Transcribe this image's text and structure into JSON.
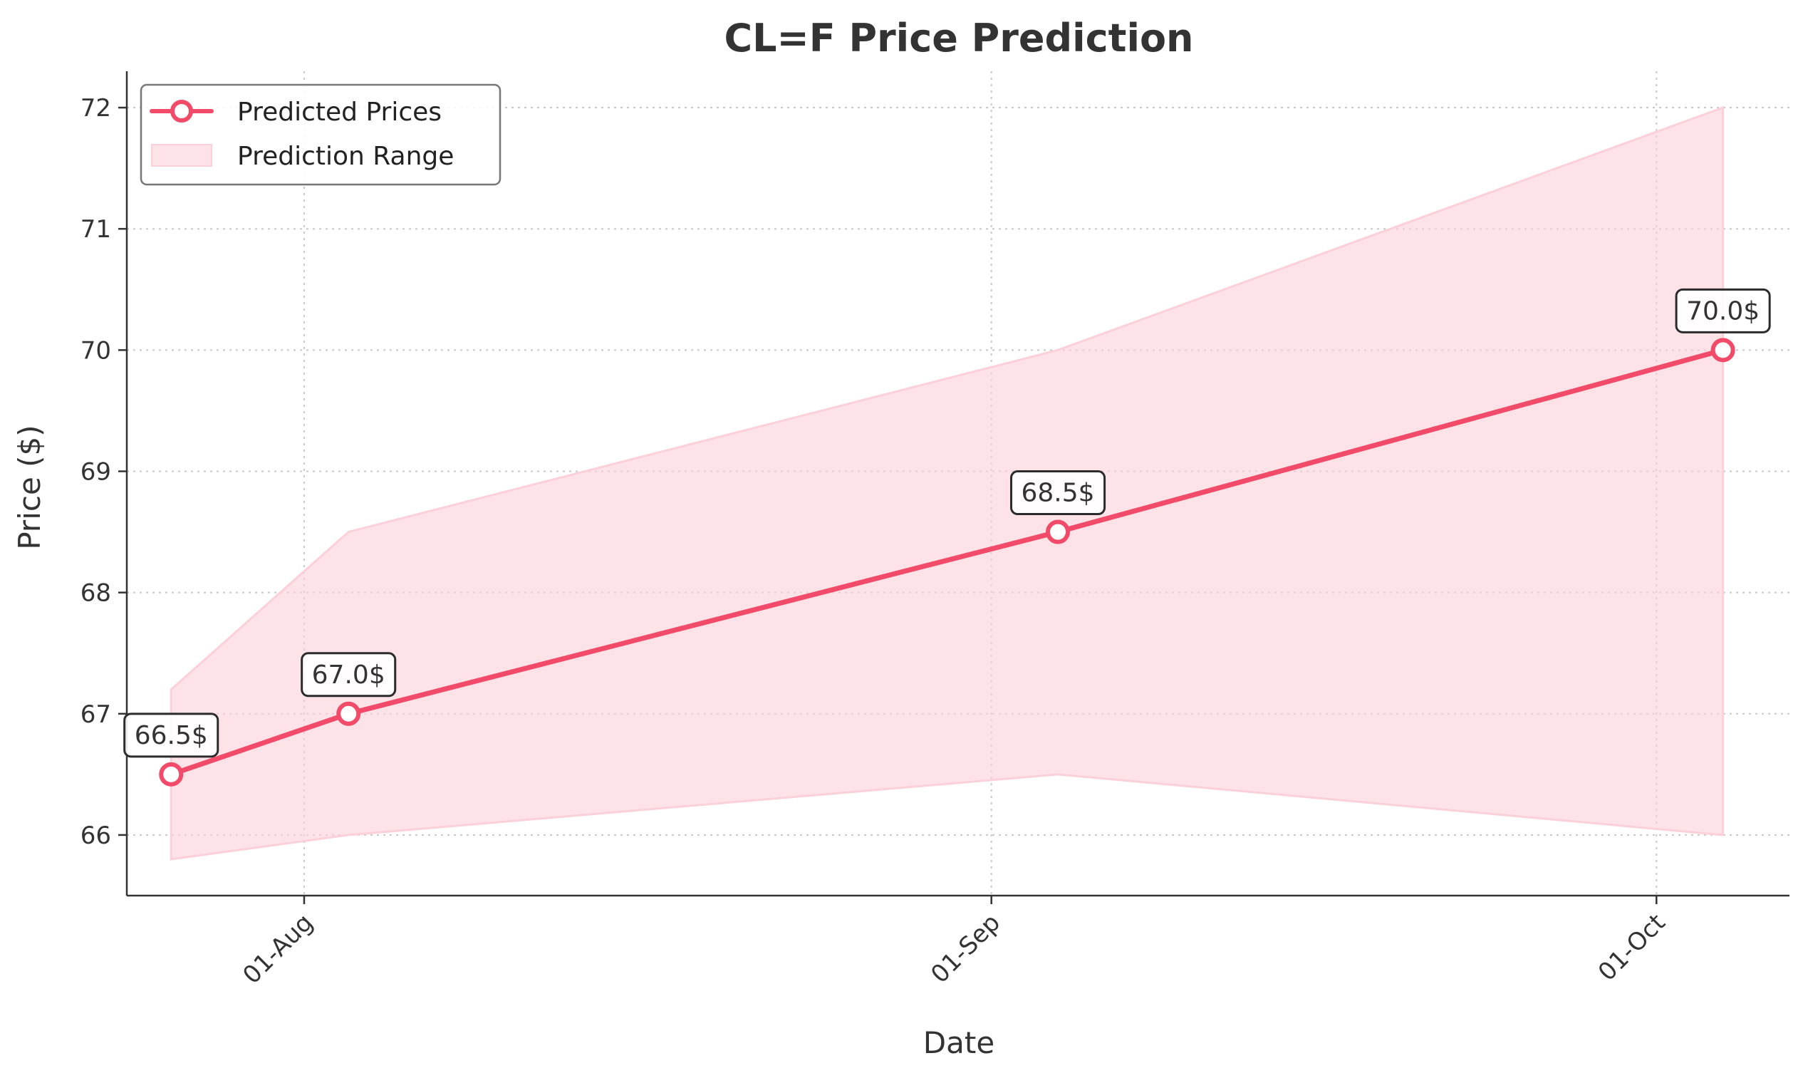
{
  "chart_data": {
    "type": "line",
    "title": "CL=F Price Prediction",
    "xlabel": "Date",
    "ylabel": "Price ($)",
    "x": [
      "2024-07-26",
      "2024-08-03",
      "2024-09-04",
      "2024-10-04"
    ],
    "x_ticks": [
      {
        "date": "2024-08-01",
        "label": "01-Aug"
      },
      {
        "date": "2024-09-01",
        "label": "01-Sep"
      },
      {
        "date": "2024-10-01",
        "label": "01-Oct"
      }
    ],
    "xlim": [
      "2024-07-24",
      "2024-10-07"
    ],
    "ylim": [
      65.5,
      72.3
    ],
    "y_ticks": [
      66,
      67,
      68,
      69,
      70,
      71,
      72
    ],
    "grid": true,
    "legend_position": "top-left",
    "series": [
      {
        "name": "Predicted Prices",
        "type": "line",
        "values": [
          66.5,
          67.0,
          68.5,
          70.0
        ],
        "labels": [
          "66.5$",
          "67.0$",
          "68.5$",
          "70.0$"
        ],
        "color": "#f24b6a"
      },
      {
        "name": "Prediction Range",
        "type": "area",
        "lower": [
          65.8,
          66.0,
          66.5,
          66.0
        ],
        "upper": [
          67.2,
          68.5,
          70.0,
          72.0
        ],
        "color": "#fcd0d8"
      }
    ]
  }
}
